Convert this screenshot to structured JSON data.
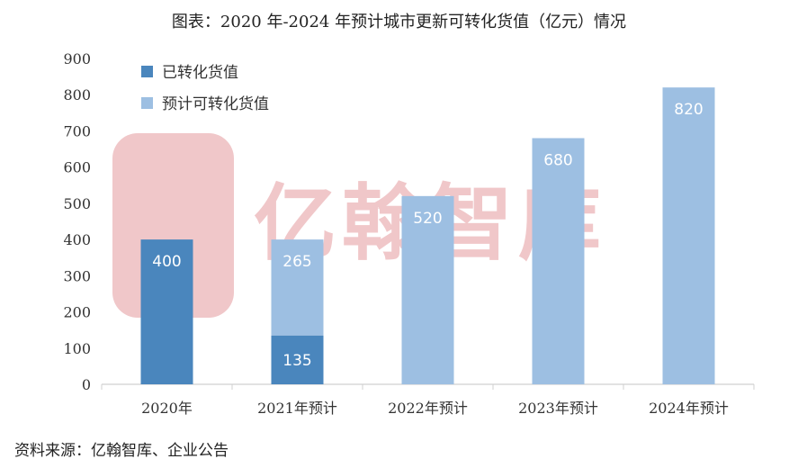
{
  "title": "图表：2020 年-2024 年预计城市更新可转化货值（亿元）情况",
  "source": "资料来源：亿翰智库、企业公告",
  "watermark": "亿翰智库",
  "colors": {
    "converted": "#4a86bd",
    "expected": "#9dbfe2",
    "watermark": "#f0c7c9",
    "axis": "#d0d0d0"
  },
  "chart_data": {
    "type": "bar",
    "stacked": true,
    "categories": [
      "2020年",
      "2021年预计",
      "2022年预计",
      "2023年预计",
      "2024年预计"
    ],
    "series": [
      {
        "name": "已转化货值",
        "values": [
          400,
          135,
          0,
          0,
          0
        ],
        "color": "#4a86bd"
      },
      {
        "name": "预计可转化货值",
        "values": [
          0,
          265,
          520,
          680,
          820
        ],
        "color": "#9dbfe2"
      }
    ],
    "data_labels": [
      [
        400,
        135,
        null,
        null,
        null
      ],
      [
        null,
        265,
        520,
        680,
        820
      ]
    ],
    "yticks": [
      0,
      100,
      200,
      300,
      400,
      500,
      600,
      700,
      800,
      900
    ],
    "ylim": [
      0,
      900
    ],
    "grid": false,
    "legend_position": "top-left"
  }
}
